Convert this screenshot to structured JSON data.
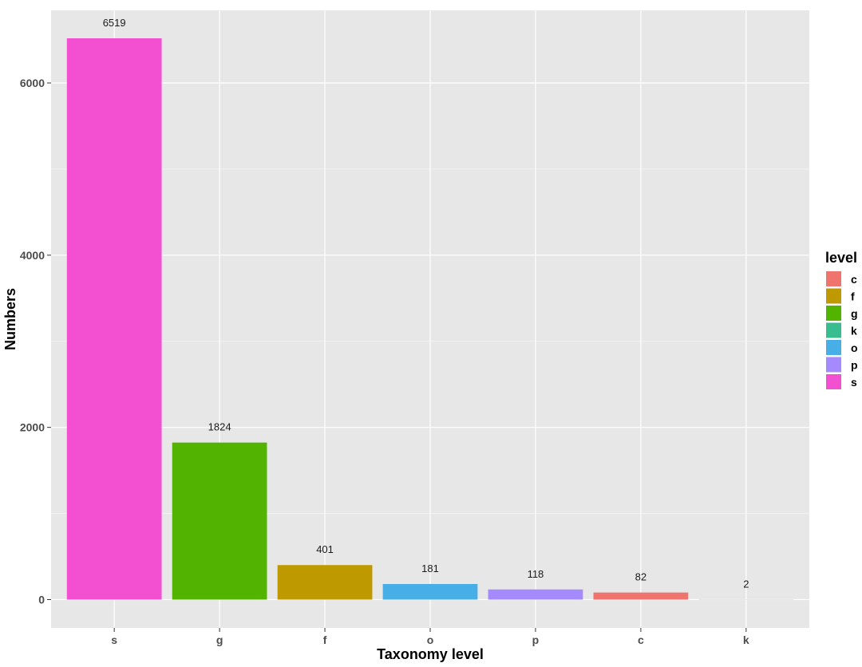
{
  "chart_data": {
    "type": "bar",
    "categories": [
      "s",
      "g",
      "f",
      "o",
      "p",
      "c",
      "k"
    ],
    "values": [
      6519,
      1824,
      401,
      181,
      118,
      82,
      2
    ],
    "data_labels": [
      "6519",
      "1824",
      "401",
      "181",
      "118",
      "82",
      "2"
    ],
    "bar_fill_keys": [
      "s",
      "g",
      "f",
      "o",
      "p",
      "c",
      "k"
    ],
    "xlabel": "Taxonomy level",
    "ylabel": "Numbers",
    "ylim": [
      -300,
      6850
    ],
    "yticks": [
      0,
      2000,
      4000,
      6000
    ],
    "ytick_labels": [
      "0",
      "2000",
      "4000",
      "6000"
    ],
    "grid": true,
    "legend": {
      "title": "level",
      "position": "right",
      "entries": [
        {
          "key": "c",
          "label": "c",
          "color": "#F0746E"
        },
        {
          "key": "f",
          "label": "f",
          "color": "#BE9A00"
        },
        {
          "key": "g",
          "label": "g",
          "color": "#53B400"
        },
        {
          "key": "k",
          "label": "k",
          "color": "#37BD8F"
        },
        {
          "key": "o",
          "label": "o",
          "color": "#47AEE6"
        },
        {
          "key": "p",
          "label": "p",
          "color": "#A58AFF"
        },
        {
          "key": "s",
          "label": "s",
          "color": "#F250D1"
        }
      ]
    }
  },
  "colors": {
    "panel_background": "#E8E7E8",
    "grid_major": "#FFFFFF",
    "grid_minor": "#F3F2F3",
    "tick_text": "#4D4D4D",
    "data_label_text": "#1A1A1A"
  }
}
